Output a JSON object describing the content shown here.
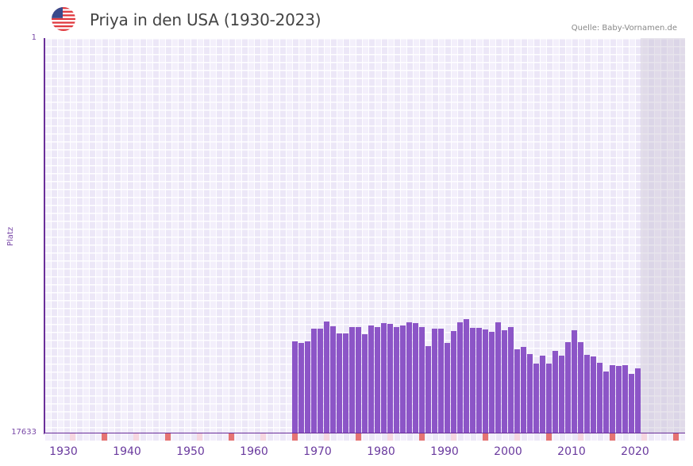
{
  "header": {
    "flag_icon": "us-flag-icon",
    "title": "Priya in den USA (1930-2023)",
    "source": "Quelle: Baby-Vornamen.de"
  },
  "axes": {
    "y_title": "Platz",
    "y_top_label": "1",
    "y_bottom_label": "17633",
    "x_labels": [
      "1930",
      "1940",
      "1950",
      "1960",
      "1970",
      "1980",
      "1990",
      "2000",
      "2010",
      "2020"
    ]
  },
  "colors": {
    "bar": "#8c55c7",
    "axis": "#6a2f9a",
    "decade_marker": "#e57373",
    "half_decade_marker": "#f6d6e0",
    "future_shade": "#e0dbe9"
  },
  "chart_data": {
    "type": "bar",
    "title": "Priya in den USA (1930-2023)",
    "xlabel": "",
    "ylabel": "Platz",
    "y_inverted": true,
    "ylim": [
      17633,
      1
    ],
    "xlim": [
      1929,
      2029
    ],
    "grid": true,
    "legend": null,
    "source": "Quelle: Baby-Vornamen.de",
    "categories": [
      1968,
      1969,
      1970,
      1971,
      1972,
      1973,
      1974,
      1975,
      1976,
      1977,
      1978,
      1979,
      1980,
      1981,
      1982,
      1983,
      1984,
      1985,
      1986,
      1987,
      1988,
      1989,
      1990,
      1991,
      1992,
      1993,
      1994,
      1995,
      1996,
      1997,
      1998,
      1999,
      2000,
      2001,
      2002,
      2003,
      2004,
      2005,
      2006,
      2007,
      2008,
      2009,
      2010,
      2011,
      2012,
      2013,
      2014,
      2015,
      2016,
      2017,
      2018,
      2019,
      2020,
      2021,
      2022
    ],
    "series": [
      {
        "name": "Platz",
        "values": [
          13560,
          13630,
          13560,
          12990,
          12990,
          12670,
          12880,
          13200,
          13200,
          12920,
          12920,
          13240,
          12850,
          12920,
          12740,
          12780,
          12920,
          12850,
          12710,
          12740,
          12920,
          13770,
          12990,
          12990,
          13630,
          13100,
          12710,
          12570,
          12960,
          12960,
          13030,
          13130,
          12710,
          13060,
          12920,
          13920,
          13810,
          14130,
          14560,
          14200,
          14560,
          13990,
          14200,
          13600,
          13060,
          13600,
          14170,
          14240,
          14520,
          14910,
          14630,
          14670,
          14630,
          15020,
          14770
        ]
      }
    ]
  }
}
